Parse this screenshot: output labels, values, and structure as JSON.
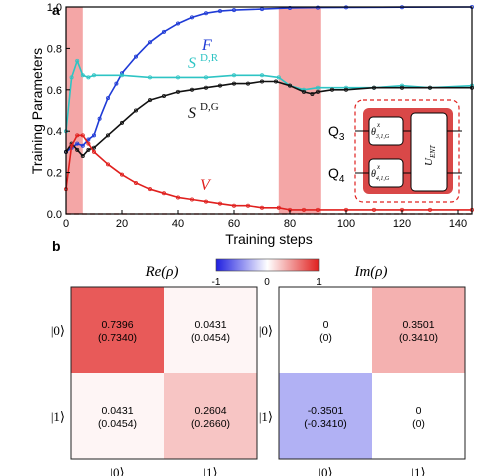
{
  "chart_data": [
    {
      "panel_label": "a",
      "type": "line",
      "xlabel": "Training steps",
      "ylabel": "Training Parameters",
      "xlim": [
        0,
        145
      ],
      "ylim": [
        0,
        1.0
      ],
      "xticks": [
        "0",
        "20",
        "40",
        "60",
        "80",
        "100",
        "120",
        "140"
      ],
      "yticks": [
        "0.0",
        "0.2",
        "0.4",
        "0.6",
        "0.8",
        "1.0"
      ],
      "shaded_intervals": [
        [
          0,
          6
        ],
        [
          76,
          91
        ]
      ],
      "series": [
        {
          "name": "F",
          "color": "#1f3bd6",
          "x": [
            0,
            2,
            4,
            6,
            8,
            10,
            12,
            15,
            18,
            20,
            25,
            30,
            35,
            40,
            45,
            50,
            55,
            60,
            70,
            80,
            90,
            100,
            120,
            145
          ],
          "y": [
            0.3,
            0.32,
            0.34,
            0.33,
            0.36,
            0.38,
            0.46,
            0.56,
            0.63,
            0.68,
            0.76,
            0.83,
            0.88,
            0.92,
            0.95,
            0.97,
            0.98,
            0.985,
            0.99,
            0.995,
            0.997,
            0.998,
            0.999,
            1.0
          ]
        },
        {
          "name": "S^{D,R}",
          "color": "#2ec4c4",
          "x": [
            0,
            2,
            4,
            6,
            8,
            10,
            20,
            30,
            40,
            50,
            60,
            70,
            76,
            80,
            85,
            90,
            100,
            110,
            120,
            130,
            145
          ],
          "y": [
            0.4,
            0.66,
            0.74,
            0.67,
            0.66,
            0.67,
            0.67,
            0.66,
            0.66,
            0.66,
            0.67,
            0.67,
            0.66,
            0.62,
            0.6,
            0.61,
            0.61,
            0.61,
            0.62,
            0.61,
            0.62
          ]
        },
        {
          "name": "S^{D,G}",
          "color": "#111111",
          "x": [
            0,
            2,
            4,
            6,
            8,
            10,
            15,
            20,
            25,
            30,
            35,
            40,
            45,
            50,
            55,
            60,
            65,
            70,
            75,
            80,
            85,
            88,
            90,
            95,
            100,
            110,
            120,
            130,
            145
          ],
          "y": [
            0.3,
            0.34,
            0.31,
            0.28,
            0.31,
            0.32,
            0.38,
            0.44,
            0.5,
            0.55,
            0.57,
            0.59,
            0.6,
            0.61,
            0.62,
            0.63,
            0.63,
            0.64,
            0.64,
            0.62,
            0.59,
            0.58,
            0.59,
            0.6,
            0.6,
            0.61,
            0.61,
            0.61,
            0.61
          ]
        },
        {
          "name": "V",
          "color": "#e0201e",
          "x": [
            0,
            2,
            4,
            6,
            8,
            10,
            15,
            20,
            25,
            30,
            35,
            40,
            45,
            50,
            55,
            60,
            65,
            70,
            76,
            80,
            85,
            90,
            100,
            110,
            120,
            130,
            145
          ],
          "y": [
            0.12,
            0.33,
            0.38,
            0.38,
            0.34,
            0.3,
            0.24,
            0.19,
            0.15,
            0.12,
            0.1,
            0.08,
            0.07,
            0.06,
            0.05,
            0.04,
            0.04,
            0.03,
            0.03,
            0.02,
            0.02,
            0.02,
            0.02,
            0.02,
            0.02,
            0.02,
            0.02
          ]
        }
      ],
      "baseline": {
        "y": 0.0,
        "color": "#e0201e",
        "style": "dashed"
      },
      "series_labels": [
        "F",
        "S",
        "D,R",
        "S",
        "D,G",
        "V"
      ],
      "inset": {
        "qubits": [
          "Q",
          "3",
          "Q",
          "4"
        ],
        "gates": [
          "θ",
          "x",
          "3,1,G",
          "θ",
          "x",
          "4,1,G"
        ],
        "entangler": [
          "U",
          "ENT"
        ]
      }
    },
    {
      "panel_label": "b",
      "type": "heatmap",
      "colorbar": {
        "min": -1,
        "max": 1,
        "ticks": [
          "-1",
          "0",
          "1"
        ],
        "colors": [
          "#1f1fe0",
          "#ffffff",
          "#e0201e"
        ]
      },
      "matrices": [
        {
          "title": "Re(ρ)",
          "row_labels": [
            "|0⟩",
            "|1⟩"
          ],
          "col_labels": [
            "|0⟩",
            "|1⟩"
          ],
          "values": [
            [
              0.7396,
              0.0431
            ],
            [
              0.0431,
              0.2604
            ]
          ],
          "cells": [
            [
              "0.7396",
              "(0.7340)",
              "0.0431",
              "(0.0454)"
            ],
            [
              "0.0431",
              "(0.0454)",
              "0.2604",
              "(0.2660)"
            ]
          ]
        },
        {
          "title": "Im(ρ)",
          "row_labels": [
            "|0⟩",
            "|1⟩"
          ],
          "col_labels": [
            "|0⟩",
            "|1⟩"
          ],
          "values": [
            [
              0,
              0.3501
            ],
            [
              -0.3501,
              0
            ]
          ],
          "cells": [
            [
              "0",
              "(0)",
              "0.3501",
              "(0.3410)"
            ],
            [
              "-0.3501",
              "(-0.3410)",
              "0",
              "(0)"
            ]
          ]
        }
      ]
    }
  ]
}
